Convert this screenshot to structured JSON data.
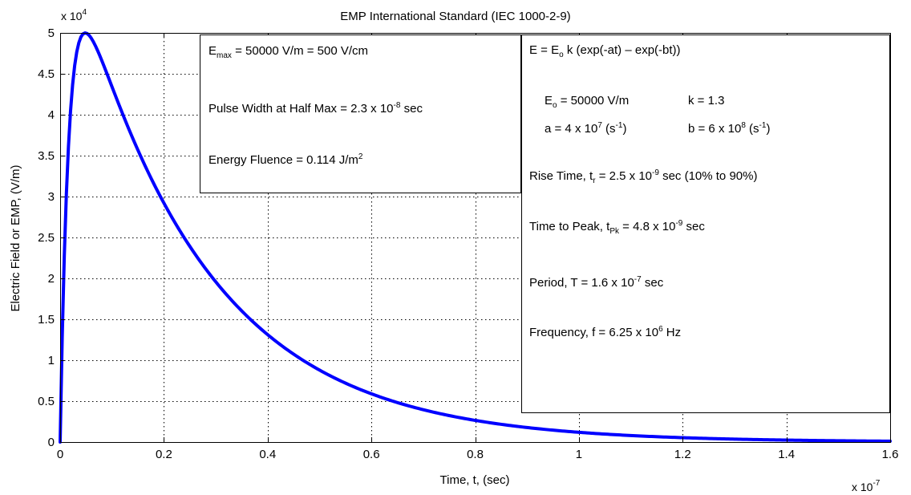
{
  "chart_data": {
    "type": "line",
    "title": "EMP International Standard (IEC 1000-2-9)",
    "xlabel": "Time, t, (sec)",
    "ylabel": "Electric Field or EMP, (V/m)",
    "x_exponent": "x 10",
    "x_exponent_power": "-7",
    "y_exponent": "x 10",
    "y_exponent_power": "4",
    "xlim": [
      0,
      1.6e-07
    ],
    "ylim": [
      0,
      50000
    ],
    "x_ticks": [
      0,
      2e-08,
      4e-08,
      6e-08,
      8e-08,
      1e-07,
      1.2e-07,
      1.4e-07,
      1.6e-07
    ],
    "x_tick_labels": [
      "0",
      "0.2",
      "0.4",
      "0.6",
      "0.8",
      "1",
      "1.2",
      "1.4",
      "1.6"
    ],
    "y_ticks": [
      0,
      5000,
      10000,
      15000,
      20000,
      25000,
      30000,
      35000,
      40000,
      45000,
      50000
    ],
    "y_tick_labels": [
      "0",
      "0.5",
      "1",
      "1.5",
      "2",
      "2.5",
      "3",
      "3.5",
      "4",
      "4.5",
      "5"
    ],
    "grid": true,
    "line_color": "#0000ff",
    "series": [
      {
        "E0": 50000,
        "k": 1.3,
        "a": 40000000,
        "b": 600000000,
        "x": [
          0,
          1e-09,
          2e-09,
          3e-09,
          4e-09,
          5e-09,
          6e-09,
          8e-09,
          1e-08,
          1.2e-08,
          1.5e-08,
          2e-08,
          2.5e-08,
          3e-08,
          3.5e-08,
          4e-08,
          4.5e-08,
          5e-08,
          6e-08,
          7e-08,
          8e-08,
          9e-08,
          1e-07,
          1.1e-07,
          1.2e-07,
          1.3e-07,
          1.4e-07,
          1.5e-07,
          1.6e-07
        ],
        "y": [
          0,
          29064,
          42047,
          47302,
          48998,
          49190,
          48590,
          46486,
          43999,
          41403,
          37649,
          32115,
          27381,
          23355,
          19918,
          16983,
          14482,
          12347,
          8974,
          6523,
          4742,
          3447,
          2505,
          1821,
          1324,
          962,
          699,
          508,
          369
        ]
      }
    ]
  },
  "annotations": {
    "left_box": {
      "emax_pre": "E",
      "emax_sub": "max",
      "emax_post": " = 50000 V/m = 500 V/cm",
      "pw_pre": "Pulse Width at Half Max = 2.3 x 10",
      "pw_sup": "-8",
      "pw_post": " sec",
      "ef_pre": "Energy Fluence = 0.114 J/m",
      "ef_sup": "2"
    },
    "right_box": {
      "eq_pre": "E = E",
      "eq_sub": "o",
      "eq_post": " k (exp(-at) – exp(-bt))",
      "e0_pre": "E",
      "e0_sub": "o",
      "e0_post": " = 50000 V/m",
      "k_text": "k = 1.3",
      "a_pre": "a = 4 x 10",
      "a_sup": "7",
      "a_mid": " (s",
      "a_sup2": "-1",
      "a_post": ")",
      "b_pre": "b = 6 x 10",
      "b_sup": "8",
      "b_mid": " (s",
      "b_sup2": "-1",
      "b_post": ")",
      "rise_pre": "Rise Time, t",
      "rise_sub": "r",
      "rise_mid": " = 2.5 x 10",
      "rise_sup": "-9",
      "rise_post": " sec (10% to 90%)",
      "peak_pre": "Time to Peak, t",
      "peak_sub": "Pk",
      "peak_mid": " = 4.8 x 10",
      "peak_sup": "-9",
      "peak_post": " sec",
      "period_pre": "Period, T = 1.6 x 10",
      "period_sup": "-7",
      "period_post": " sec",
      "freq_pre": "Frequency, f = 6.25 x 10",
      "freq_sup": "6",
      "freq_post": " Hz"
    }
  }
}
